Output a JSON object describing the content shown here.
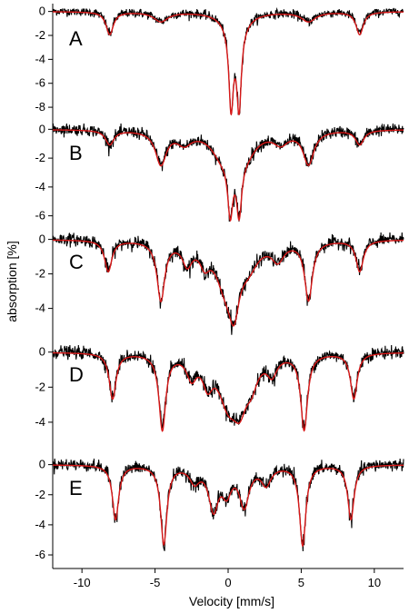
{
  "chart_data": {
    "type": "line",
    "xlabel": "Velocity [mm/s]",
    "ylabel": "absorption [%]",
    "xlim": [
      -12,
      12
    ],
    "xticks": [
      -10,
      -5,
      0,
      5,
      10
    ],
    "xtick_labels": [
      "-10",
      "-5",
      "0",
      "5",
      "10"
    ],
    "colors": {
      "measured": "#000000",
      "fit": "#d81818"
    },
    "panels": [
      {
        "label": "A",
        "ylim": [
          -8.6,
          0.2
        ],
        "yticks": [
          0,
          -2,
          -4,
          -6,
          -8
        ],
        "ytick_labels": [
          "0",
          "-2",
          "-4",
          "-6",
          "-8"
        ],
        "fit": [
          {
            "center": -8.1,
            "depth": 1.9,
            "width": 0.3
          },
          {
            "center": -4.6,
            "depth": 0.8,
            "width": 0.6
          },
          {
            "center": 0.2,
            "depth": 6.5,
            "width": 0.18
          },
          {
            "center": 0.75,
            "depth": 6.5,
            "width": 0.18
          },
          {
            "center": 0.5,
            "depth": 1.7,
            "width": 0.8
          },
          {
            "center": 5.5,
            "depth": 0.8,
            "width": 0.6
          },
          {
            "center": 9.0,
            "depth": 1.9,
            "width": 0.3
          }
        ],
        "noise": 0.18
      },
      {
        "label": "B",
        "ylim": [
          -6.4,
          0.4
        ],
        "yticks": [
          0,
          -2,
          -4,
          -6
        ],
        "ytick_labels": [
          "0",
          "-2",
          "-4",
          "-6"
        ],
        "fit": [
          {
            "center": -8.1,
            "depth": 1.0,
            "width": 0.35
          },
          {
            "center": -4.6,
            "depth": 2.3,
            "width": 0.45
          },
          {
            "center": -3.0,
            "depth": 0.8,
            "width": 0.6
          },
          {
            "center": -0.4,
            "depth": 1.6,
            "width": 0.9
          },
          {
            "center": 0.15,
            "depth": 4.0,
            "width": 0.22
          },
          {
            "center": 0.75,
            "depth": 4.0,
            "width": 0.22
          },
          {
            "center": 1.2,
            "depth": 1.4,
            "width": 0.9
          },
          {
            "center": 3.6,
            "depth": 0.8,
            "width": 0.6
          },
          {
            "center": 5.5,
            "depth": 2.3,
            "width": 0.45
          },
          {
            "center": 9.0,
            "depth": 1.0,
            "width": 0.35
          }
        ],
        "noise": 0.2
      },
      {
        "label": "C",
        "ylim": [
          -5.6,
          0.4
        ],
        "yticks": [
          0,
          -2,
          -4
        ],
        "ytick_labels": [
          "0",
          "-2",
          "-4"
        ],
        "fit": [
          {
            "center": -8.2,
            "depth": 1.8,
            "width": 0.3
          },
          {
            "center": -4.6,
            "depth": 3.4,
            "width": 0.32
          },
          {
            "center": -2.8,
            "depth": 1.2,
            "width": 0.4
          },
          {
            "center": -1.6,
            "depth": 1.0,
            "width": 0.4
          },
          {
            "center": -0.2,
            "depth": 2.2,
            "width": 0.8
          },
          {
            "center": 0.4,
            "depth": 3.0,
            "width": 0.45
          },
          {
            "center": 1.4,
            "depth": 1.2,
            "width": 0.8
          },
          {
            "center": 3.4,
            "depth": 1.0,
            "width": 0.5
          },
          {
            "center": 5.5,
            "depth": 3.4,
            "width": 0.32
          },
          {
            "center": 9.0,
            "depth": 1.8,
            "width": 0.3
          }
        ],
        "noise": 0.18
      },
      {
        "label": "D",
        "ylim": [
          -5.3,
          0.4
        ],
        "yticks": [
          0,
          -2,
          -4
        ],
        "ytick_labels": [
          "0",
          "-2",
          "-4"
        ],
        "fit": [
          {
            "center": -7.9,
            "depth": 2.6,
            "width": 0.28
          },
          {
            "center": -4.5,
            "depth": 4.3,
            "width": 0.28
          },
          {
            "center": -2.5,
            "depth": 1.2,
            "width": 0.4
          },
          {
            "center": -1.4,
            "depth": 1.4,
            "width": 0.4
          },
          {
            "center": 0.0,
            "depth": 2.5,
            "width": 0.8
          },
          {
            "center": 0.8,
            "depth": 2.3,
            "width": 0.6
          },
          {
            "center": 1.6,
            "depth": 1.2,
            "width": 0.5
          },
          {
            "center": 3.0,
            "depth": 1.0,
            "width": 0.4
          },
          {
            "center": 5.2,
            "depth": 4.3,
            "width": 0.28
          },
          {
            "center": 8.6,
            "depth": 2.6,
            "width": 0.28
          }
        ],
        "noise": 0.18
      },
      {
        "label": "E",
        "ylim": [
          -6.3,
          0.4
        ],
        "yticks": [
          0,
          -2,
          -4,
          -6
        ],
        "ytick_labels": [
          "0",
          "-2",
          "-4",
          "-6"
        ],
        "fit": [
          {
            "center": -7.7,
            "depth": 3.6,
            "width": 0.26
          },
          {
            "center": -4.4,
            "depth": 5.2,
            "width": 0.26
          },
          {
            "center": -2.3,
            "depth": 1.0,
            "width": 0.4
          },
          {
            "center": -1.0,
            "depth": 2.8,
            "width": 0.4
          },
          {
            "center": -0.1,
            "depth": 1.6,
            "width": 0.4
          },
          {
            "center": 1.1,
            "depth": 2.6,
            "width": 0.4
          },
          {
            "center": 2.6,
            "depth": 1.2,
            "width": 0.4
          },
          {
            "center": 5.1,
            "depth": 5.3,
            "width": 0.26
          },
          {
            "center": 8.4,
            "depth": 3.6,
            "width": 0.26
          }
        ],
        "noise": 0.2
      }
    ]
  }
}
